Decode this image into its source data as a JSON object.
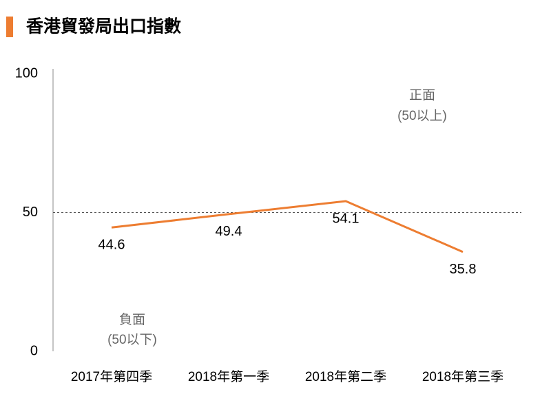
{
  "chart_data": {
    "type": "line",
    "title": "香港貿發局出口指數",
    "categories": [
      "2017年第四季",
      "2018年第一季",
      "2018年第二季",
      "2018年第三季"
    ],
    "values": [
      44.6,
      49.4,
      54.1,
      35.8
    ],
    "color": "#ed7d31",
    "ylim": [
      0,
      100
    ],
    "yticks": [
      0,
      50,
      100
    ],
    "reference_line": 50,
    "annotations": [
      "正面",
      "(50以上)",
      "負面",
      "(50以下)"
    ]
  }
}
